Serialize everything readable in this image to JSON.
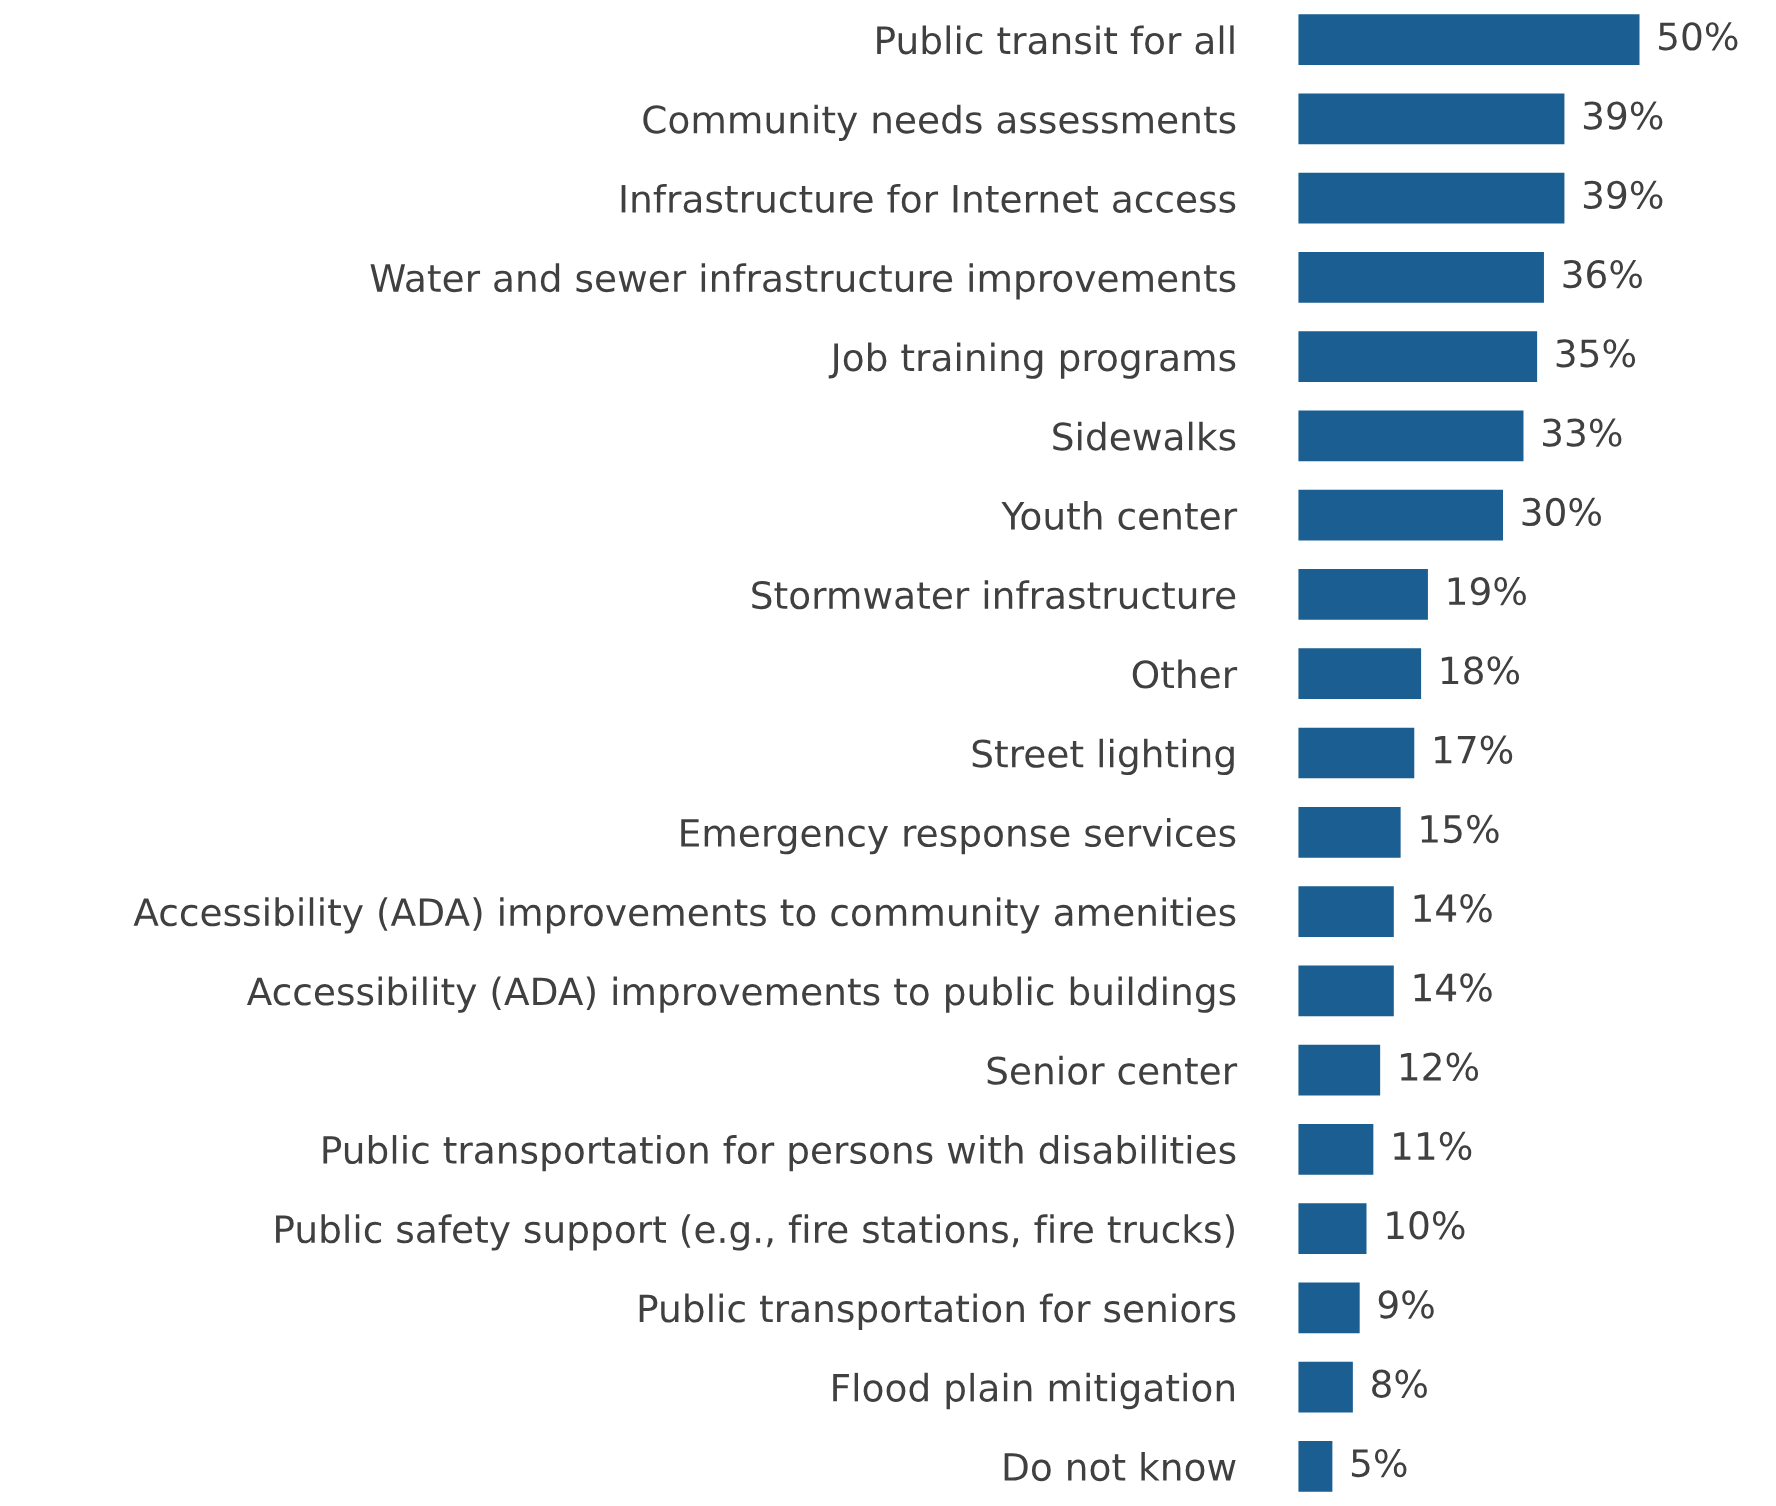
{
  "chart_data": {
    "type": "bar",
    "orientation": "horizontal",
    "color": "#1b5e91",
    "categories": [
      "Public transit for all",
      "Community needs assessments",
      "Infrastructure for Internet access",
      "Water and sewer infrastructure improvements",
      "Job training programs",
      "Sidewalks",
      "Youth center",
      "Stormwater infrastructure",
      "Other",
      "Street lighting",
      "Emergency response services",
      "Accessibility (ADA) improvements to community amenities",
      "Accessibility (ADA) improvements to public buildings",
      "Senior center",
      "Public transportation for persons with disabilities",
      "Public safety support (e.g., fire stations, fire trucks)",
      "Public transportation for seniors",
      "Flood plain mitigation",
      "Do not know"
    ],
    "values": [
      50,
      39,
      39,
      36,
      35,
      33,
      30,
      19,
      18,
      17,
      15,
      14,
      14,
      12,
      11,
      10,
      9,
      8,
      5
    ],
    "value_labels": [
      "50%",
      "39%",
      "39%",
      "36%",
      "35%",
      "33%",
      "30%",
      "19%",
      "18%",
      "17%",
      "15%",
      "14%",
      "14%",
      "12%",
      "11%",
      "10%",
      "9%",
      "8%",
      "5%"
    ]
  }
}
